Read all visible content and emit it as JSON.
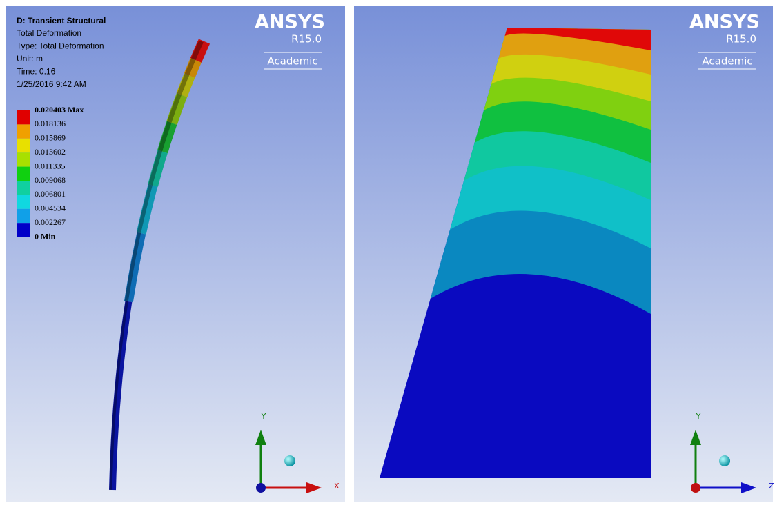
{
  "left_panel": {
    "header": {
      "title": "D: Transient Structural",
      "lines": [
        "Total Deformation",
        "Type: Total Deformation",
        "Unit: m",
        "Time: 0.16",
        "1/25/2016 9:42 AM"
      ]
    },
    "legend": {
      "labels": [
        "0.020403 Max",
        "0.018136",
        "0.015869",
        "0.013602",
        "0.011335",
        "0.009068",
        "0.006801",
        "0.004534",
        "0.002267",
        "0 Min"
      ]
    },
    "logo": {
      "name": "ANSYS",
      "version": "R15.0",
      "edition": "Academic"
    },
    "triad": {
      "vertical": "Y",
      "horizontal": "X"
    }
  },
  "right_panel": {
    "logo": {
      "name": "ANSYS",
      "version": "R15.0",
      "edition": "Academic"
    },
    "triad": {
      "vertical": "Y",
      "horizontal": "Z"
    }
  }
}
